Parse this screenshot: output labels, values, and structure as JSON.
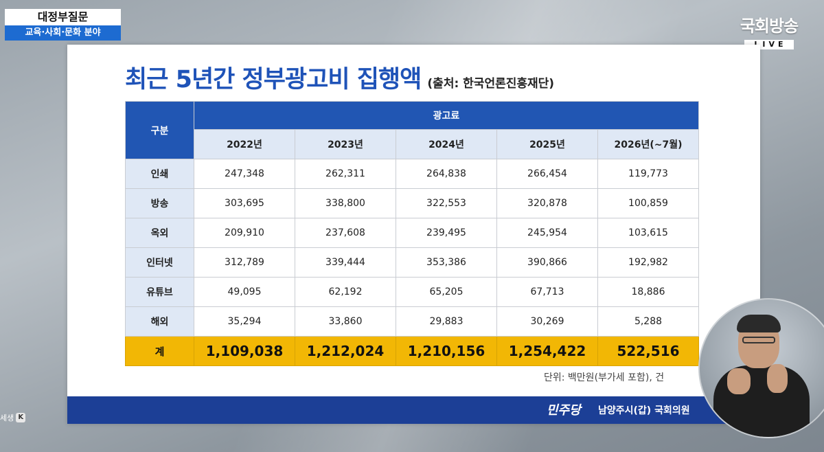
{
  "program": {
    "line1": "대정부질문",
    "line2": "교육·사회·문화 분야"
  },
  "broadcaster": {
    "name": "국회방송",
    "live": "LIVE"
  },
  "slide": {
    "title": "최근 5년간 정부광고비 집행액",
    "source": "(출처: 한국언론진흥재단)",
    "unit_note": "단위: 백만원(부가세 포함), 건",
    "footer": {
      "party": "민주당",
      "member": "남양주시(갑) 국회의원"
    }
  },
  "table": {
    "header_category": "구분",
    "header_group": "광고료",
    "years": [
      "2022년",
      "2023년",
      "2024년",
      "2025년",
      "2026년(~7월)"
    ],
    "rows": [
      {
        "label": "인쇄",
        "values": [
          "247,348",
          "262,311",
          "264,838",
          "266,454",
          "119,773"
        ]
      },
      {
        "label": "방송",
        "values": [
          "303,695",
          "338,800",
          "322,553",
          "320,878",
          "100,859"
        ]
      },
      {
        "label": "옥외",
        "values": [
          "209,910",
          "237,608",
          "239,495",
          "245,954",
          "103,615"
        ]
      },
      {
        "label": "인터넷",
        "values": [
          "312,789",
          "339,444",
          "353,386",
          "390,866",
          "192,982"
        ]
      },
      {
        "label": "유튜브",
        "values": [
          "49,095",
          "62,192",
          "65,205",
          "67,713",
          "18,886"
        ]
      },
      {
        "label": "해외",
        "values": [
          "35,294",
          "33,860",
          "29,883",
          "30,269",
          "5,288"
        ]
      }
    ],
    "total": {
      "label": "계",
      "values": [
        "1,109,038",
        "1,212,024",
        "1,210,156",
        "1,254,422",
        "522,516"
      ]
    }
  },
  "corner_widget": {
    "text": "세생",
    "key": "K"
  },
  "colors": {
    "title_blue": "#1f53b8",
    "header_blue": "#2156b3",
    "total_yellow": "#f2b705",
    "footer_navy": "#1c3f96"
  }
}
